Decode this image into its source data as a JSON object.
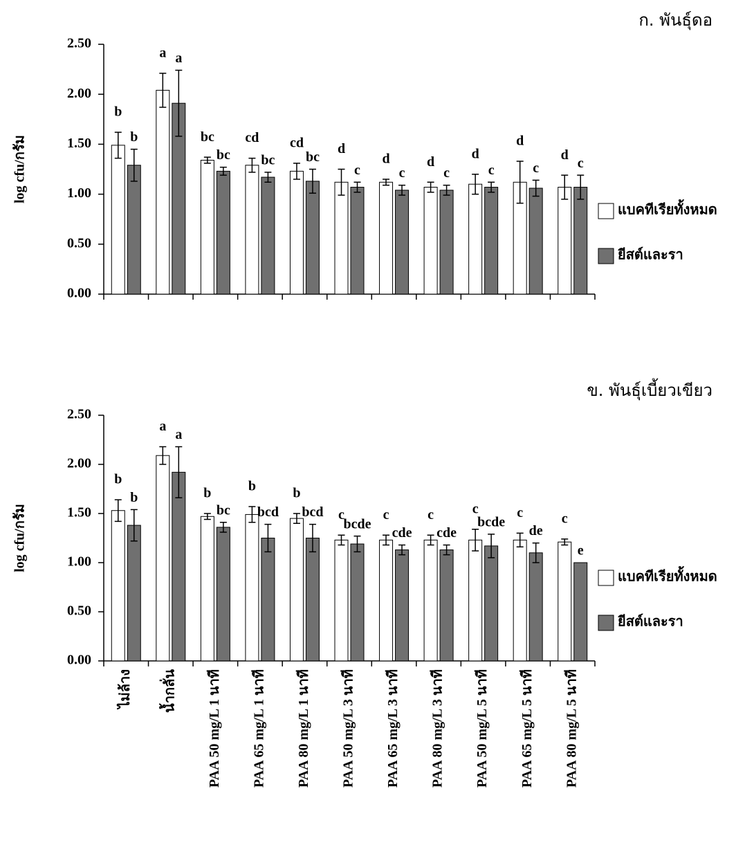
{
  "chart_data": [
    {
      "type": "bar",
      "title": "ก.  พันธุ์ดอ",
      "ylabel": "log cfu/กรัม",
      "categories": [
        null,
        null,
        null,
        null,
        null,
        null,
        null,
        null,
        null,
        null,
        null
      ],
      "series": [
        {
          "name": "แบคทีเรียทั้งหมด",
          "color": "#ffffff",
          "values": [
            1.49,
            2.04,
            1.34,
            1.29,
            1.23,
            1.12,
            1.12,
            1.07,
            1.1,
            1.12,
            1.07
          ],
          "errors": [
            0.13,
            0.17,
            0.03,
            0.07,
            0.08,
            0.13,
            0.03,
            0.05,
            0.1,
            0.21,
            0.12
          ],
          "letters": [
            "b",
            "a",
            "bc",
            "cd",
            "cd",
            "d",
            "d",
            "d",
            "d",
            "d",
            "d"
          ]
        },
        {
          "name": "ยีสต์และรา",
          "color": "#707070",
          "values": [
            1.29,
            1.91,
            1.23,
            1.17,
            1.13,
            1.07,
            1.04,
            1.04,
            1.07,
            1.06,
            1.07
          ],
          "errors": [
            0.16,
            0.33,
            0.04,
            0.05,
            0.12,
            0.05,
            0.05,
            0.05,
            0.05,
            0.08,
            0.12
          ],
          "letters": [
            "b",
            "a",
            "bc",
            "bc",
            "bc",
            "c",
            "c",
            "c",
            "c",
            "c",
            "c"
          ]
        }
      ],
      "ylim": [
        0,
        2.5
      ],
      "yticks": [
        {
          "value": 0,
          "label": "0.00"
        },
        {
          "value": 0.5,
          "label": "0.50"
        },
        {
          "value": 1,
          "label": "1.00"
        },
        {
          "value": 1.5,
          "label": "1.50"
        },
        {
          "value": 2,
          "label": "2.00"
        },
        {
          "value": 2.5,
          "label": "2.50"
        }
      ],
      "legend": "right"
    },
    {
      "type": "bar",
      "title": "ข.  พันธุ์เบี้ยวเขียว",
      "ylabel": "log cfu/กรัม",
      "categories": [
        "ไม่ล้าง",
        "น้ำกลั่น",
        "PAA 50 mg/L 1 นาที",
        "PAA 65 mg/L 1 นาที",
        "PAA 80 mg/L 1 นาที",
        "PAA 50 mg/L 3 นาที",
        "PAA 65 mg/L 3 นาที",
        "PAA 80 mg/L 3 นาที",
        "PAA 50 mg/L 5 นาที",
        "PAA 65 mg/L 5 นาที",
        "PAA 80 mg/L 5 นาที"
      ],
      "series": [
        {
          "name": "แบคทีเรียทั้งหมด",
          "color": "#ffffff",
          "values": [
            1.53,
            2.09,
            1.47,
            1.49,
            1.45,
            1.23,
            1.23,
            1.23,
            1.23,
            1.23,
            1.21
          ],
          "errors": [
            0.11,
            0.09,
            0.03,
            0.08,
            0.05,
            0.05,
            0.05,
            0.05,
            0.11,
            0.07,
            0.03
          ],
          "letters": [
            "b",
            "a",
            "b",
            "b",
            "b",
            "c",
            "c",
            "c",
            "c",
            "c",
            "c"
          ]
        },
        {
          "name": "ยีสต์และรา",
          "color": "#707070",
          "values": [
            1.38,
            1.92,
            1.36,
            1.25,
            1.25,
            1.19,
            1.13,
            1.13,
            1.17,
            1.1,
            1.0
          ],
          "errors": [
            0.16,
            0.26,
            0.05,
            0.14,
            0.14,
            0.08,
            0.05,
            0.05,
            0.12,
            0.1,
            null
          ],
          "letters": [
            "b",
            "a",
            "bc",
            "bcd",
            "bcd",
            "bcde",
            "cde",
            "cde",
            "bcde",
            "de",
            "e"
          ]
        }
      ],
      "ylim": [
        0,
        2.5
      ],
      "yticks": [
        {
          "value": 0,
          "label": "0.00"
        },
        {
          "value": 0.5,
          "label": "0.50"
        },
        {
          "value": 1,
          "label": "1.00"
        },
        {
          "value": 1.5,
          "label": "1.50"
        },
        {
          "value": 2,
          "label": "2.00"
        },
        {
          "value": 2.5,
          "label": "2.50"
        }
      ],
      "legend": "right"
    }
  ]
}
